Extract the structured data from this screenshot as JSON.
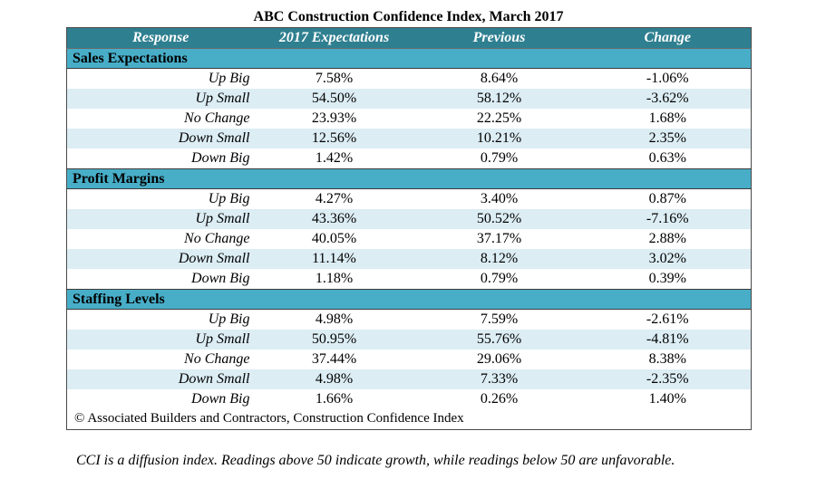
{
  "chart_data": {
    "type": "table",
    "title": "ABC Construction Confidence Index, March 2017",
    "columns": [
      "Response",
      "2017 Expectations",
      "Previous",
      "Change"
    ],
    "sections": [
      {
        "name": "Sales Expectations",
        "rows": [
          {
            "response": "Up Big",
            "expectations": "7.58%",
            "previous": "8.64%",
            "change": "-1.06%"
          },
          {
            "response": "Up Small",
            "expectations": "54.50%",
            "previous": "58.12%",
            "change": "-3.62%"
          },
          {
            "response": "No Change",
            "expectations": "23.93%",
            "previous": "22.25%",
            "change": "1.68%"
          },
          {
            "response": "Down Small",
            "expectations": "12.56%",
            "previous": "10.21%",
            "change": "2.35%"
          },
          {
            "response": "Down Big",
            "expectations": "1.42%",
            "previous": "0.79%",
            "change": "0.63%"
          }
        ]
      },
      {
        "name": "Profit Margins",
        "rows": [
          {
            "response": "Up Big",
            "expectations": "4.27%",
            "previous": "3.40%",
            "change": "0.87%"
          },
          {
            "response": "Up Small",
            "expectations": "43.36%",
            "previous": "50.52%",
            "change": "-7.16%"
          },
          {
            "response": "No Change",
            "expectations": "40.05%",
            "previous": "37.17%",
            "change": "2.88%"
          },
          {
            "response": "Down Small",
            "expectations": "11.14%",
            "previous": "8.12%",
            "change": "3.02%"
          },
          {
            "response": "Down Big",
            "expectations": "1.18%",
            "previous": "0.79%",
            "change": "0.39%"
          }
        ]
      },
      {
        "name": "Staffing Levels",
        "rows": [
          {
            "response": "Up Big",
            "expectations": "4.98%",
            "previous": "7.59%",
            "change": "-2.61%"
          },
          {
            "response": "Up Small",
            "expectations": "50.95%",
            "previous": "55.76%",
            "change": "-4.81%"
          },
          {
            "response": "No Change",
            "expectations": "37.44%",
            "previous": "29.06%",
            "change": "8.38%"
          },
          {
            "response": "Down Small",
            "expectations": "4.98%",
            "previous": "7.33%",
            "change": "-2.35%"
          },
          {
            "response": "Down Big",
            "expectations": "1.66%",
            "previous": "0.26%",
            "change": "1.40%"
          }
        ]
      }
    ],
    "source": "© Associated Builders and Contractors, Construction Confidence Index",
    "footnote": "CCI is a diffusion index.  Readings above 50 indicate growth, while readings below 50 are unfavorable."
  },
  "colors": {
    "header_bg": "#2e7f90",
    "section_bg": "#48aec8",
    "alt_row_bg": "#dcedf4"
  }
}
